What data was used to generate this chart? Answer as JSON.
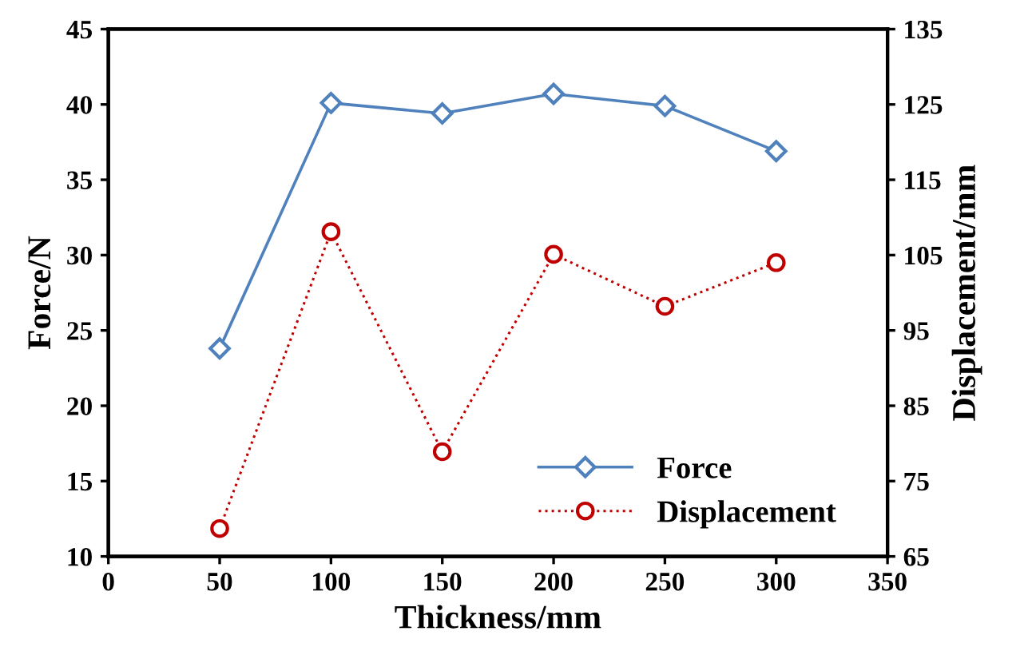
{
  "chart_data": {
    "type": "line",
    "xlabel": "Thickness/mm",
    "ylabel": "Force/N",
    "y2label": "Displacement/mm",
    "x": [
      50,
      100,
      150,
      200,
      250,
      300
    ],
    "series": [
      {
        "name": "Force",
        "color": "#4f81bd",
        "values": [
          23.8,
          40.1,
          39.4,
          40.7,
          39.9,
          36.9
        ],
        "marker": "diamond",
        "line_style": "solid"
      },
      {
        "name": "Displacement",
        "color": "#c00000",
        "values": [
          68.7,
          108.1,
          78.9,
          105.1,
          98.2,
          104.0
        ],
        "marker": "circle",
        "line_style": "dotted",
        "axis": "y2"
      }
    ],
    "xlim": [
      0,
      350
    ],
    "xticks": [
      0,
      50,
      100,
      150,
      200,
      250,
      300,
      350
    ],
    "ylim": [
      10,
      45
    ],
    "yticks": [
      10,
      15,
      20,
      25,
      30,
      35,
      40,
      45
    ],
    "y2lim": [
      65,
      135
    ],
    "y2ticks": [
      65,
      75,
      85,
      95,
      105,
      115,
      125,
      135
    ],
    "grid": false,
    "legend": "bottom right"
  }
}
